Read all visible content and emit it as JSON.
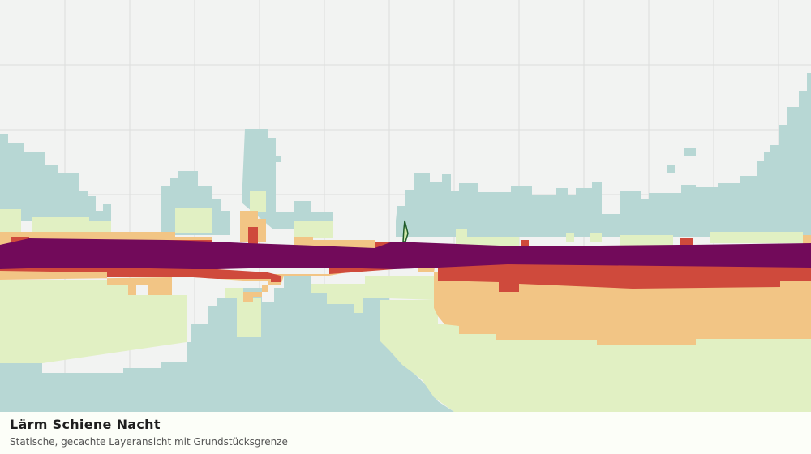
{
  "caption": {
    "title": "Lärm Schiene Nacht",
    "subtitle": "Statische, gecachte Layeransicht mit Grundstücksgrenze"
  }
}
